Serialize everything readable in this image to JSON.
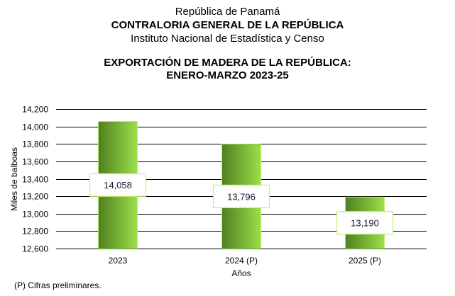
{
  "header": {
    "line1": "República de Panamá",
    "line2": "CONTRALORIA GENERAL DE LA REPÚBLICA",
    "line3": "Instituto  Nacional de Estadística y Censo"
  },
  "chart_data": {
    "type": "bar",
    "title": "EXPORTACIÓN DE MADERA DE LA REPÚBLICA:",
    "subtitle": "ENERO-MARZO 2023-25",
    "xlabel": "Años",
    "ylabel": "Miles de balboas",
    "categories": [
      "2023",
      "2024 (P)",
      "2025 (P)"
    ],
    "values": [
      14058,
      13796,
      13190
    ],
    "data_labels": [
      "14,058",
      "13,796",
      "13,190"
    ],
    "ylim": [
      12600,
      14200
    ],
    "yticks": [
      12600,
      12800,
      13000,
      13200,
      13400,
      13600,
      13800,
      14000,
      14200
    ],
    "ytick_labels": [
      "12,600",
      "12,800",
      "13,000",
      "13,200",
      "13,400",
      "13,600",
      "13,800",
      "14,000",
      "14,200"
    ],
    "grid": true,
    "legend": "none",
    "colors": {
      "bar_dark": "#4F7F1F",
      "bar_light": "#9BE04A",
      "bar_border": "#B6F06A",
      "label_border": "#C6EE7A",
      "label_text": "#1A1A3A",
      "grid": "#000000"
    }
  },
  "footnote": "(P) Cifras  preliminares."
}
